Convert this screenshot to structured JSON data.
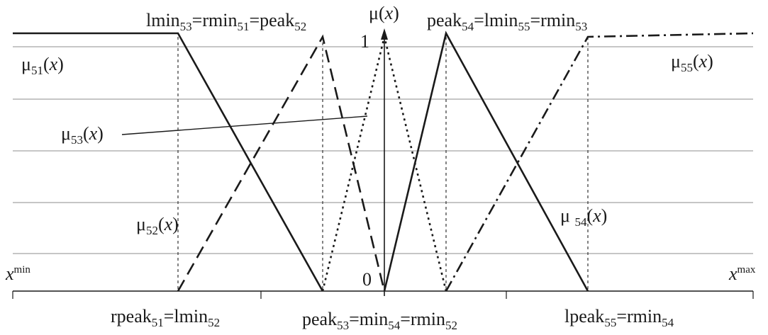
{
  "y_axis_label": {
    "prefix": "μ(",
    "var": "x",
    "suffix": ")"
  },
  "tick_one": "1",
  "tick_zero": "0",
  "x_min_label": {
    "base": "x",
    "sup": "min"
  },
  "x_max_label": {
    "base": "x",
    "sup": "max"
  },
  "top_left_label": {
    "a": "lmin",
    "a_sub": "53",
    "b": "=rmin",
    "b_sub": "51",
    "c": "=peak",
    "c_sub": "52"
  },
  "top_right_label": {
    "a": "peak",
    "a_sub": "54",
    "b": "=lmin",
    "b_sub": "55",
    "c": "=rmin",
    "c_sub": "53"
  },
  "bottom_left_label": {
    "a": "rpeak",
    "a_sub": "51",
    "b": "=lmin",
    "b_sub": "52"
  },
  "bottom_center_label": {
    "a": "peak",
    "a_sub": "53",
    "b": "=min",
    "b_sub": "54",
    "c": "=rmin",
    "c_sub": "52"
  },
  "bottom_right_label": {
    "a": "lpeak",
    "a_sub": "55",
    "b": "=rmin",
    "b_sub": "54"
  },
  "mu51": {
    "mu": "μ",
    "sub": "51",
    "var": "x"
  },
  "mu52": {
    "mu": "μ",
    "sub": "52",
    "var": "x"
  },
  "mu53": {
    "mu": "μ",
    "sub": "53",
    "var": "x"
  },
  "mu54": {
    "mu": "μ ",
    "sub": "54",
    "var": "x"
  },
  "mu55": {
    "mu": "μ",
    "sub": "55",
    "var": "x"
  },
  "colors": {
    "line": "#1a1a1a",
    "grid": "#b4b4b4",
    "guide": "#333333"
  }
}
